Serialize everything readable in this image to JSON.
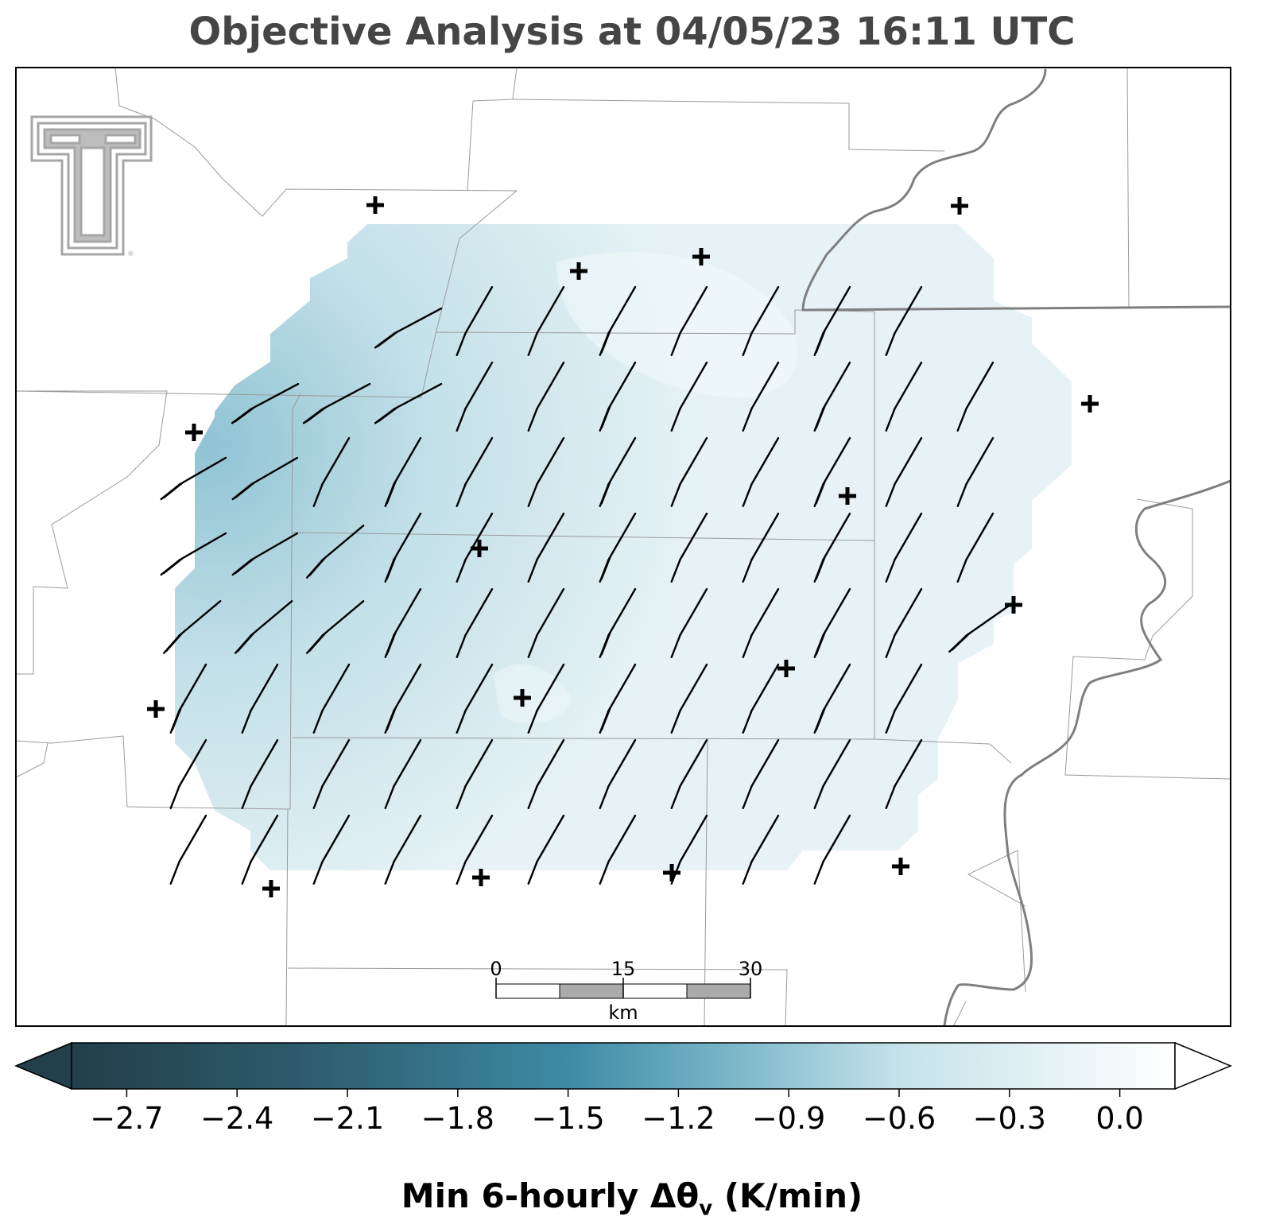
{
  "title": "Objective Analysis at 04/05/23 16:11 UTC",
  "colors": {
    "title": "#454545",
    "field_light": "#e6f2f6",
    "field_dark": "#8fc3d3",
    "county_lines": "#9a9a9a",
    "state_lines": "#7f7f7f",
    "barbs": "#000000",
    "logo": "#a6a6a6"
  },
  "logo": {
    "icon": "texas-tech-double-t-logo",
    "trademark": "®"
  },
  "scale_bar": {
    "ticks": [
      "0",
      "15",
      "30"
    ],
    "unit": "km"
  },
  "colorbar": {
    "ticks": [
      "−2.7",
      "−2.4",
      "−2.1",
      "−1.8",
      "−1.5",
      "−1.2",
      "−0.9",
      "−0.6",
      "−0.3",
      "0.0"
    ],
    "range": [
      -2.85,
      0.15
    ],
    "extend": "both",
    "colors": [
      "#223f4a",
      "#2d5a6a",
      "#3d8aa5",
      "#7bb7c9",
      "#c5e2ea",
      "#ffffff"
    ]
  },
  "colorbar_label": {
    "text": "Min 6-hourly Δθ",
    "subscript": "v",
    "units": " (K/min)"
  },
  "stations": [
    [
      472,
      258
    ],
    [
      1207,
      259
    ],
    [
      882,
      323
    ],
    [
      728,
      341
    ],
    [
      1371,
      508
    ],
    [
      244,
      544
    ],
    [
      1066,
      624
    ],
    [
      603,
      690
    ],
    [
      1275,
      761
    ],
    [
      989,
      841
    ],
    [
      657,
      878
    ],
    [
      196,
      892
    ],
    [
      1133,
      1090
    ],
    [
      845,
      1098
    ],
    [
      605,
      1104
    ],
    [
      341,
      1118
    ]
  ]
}
